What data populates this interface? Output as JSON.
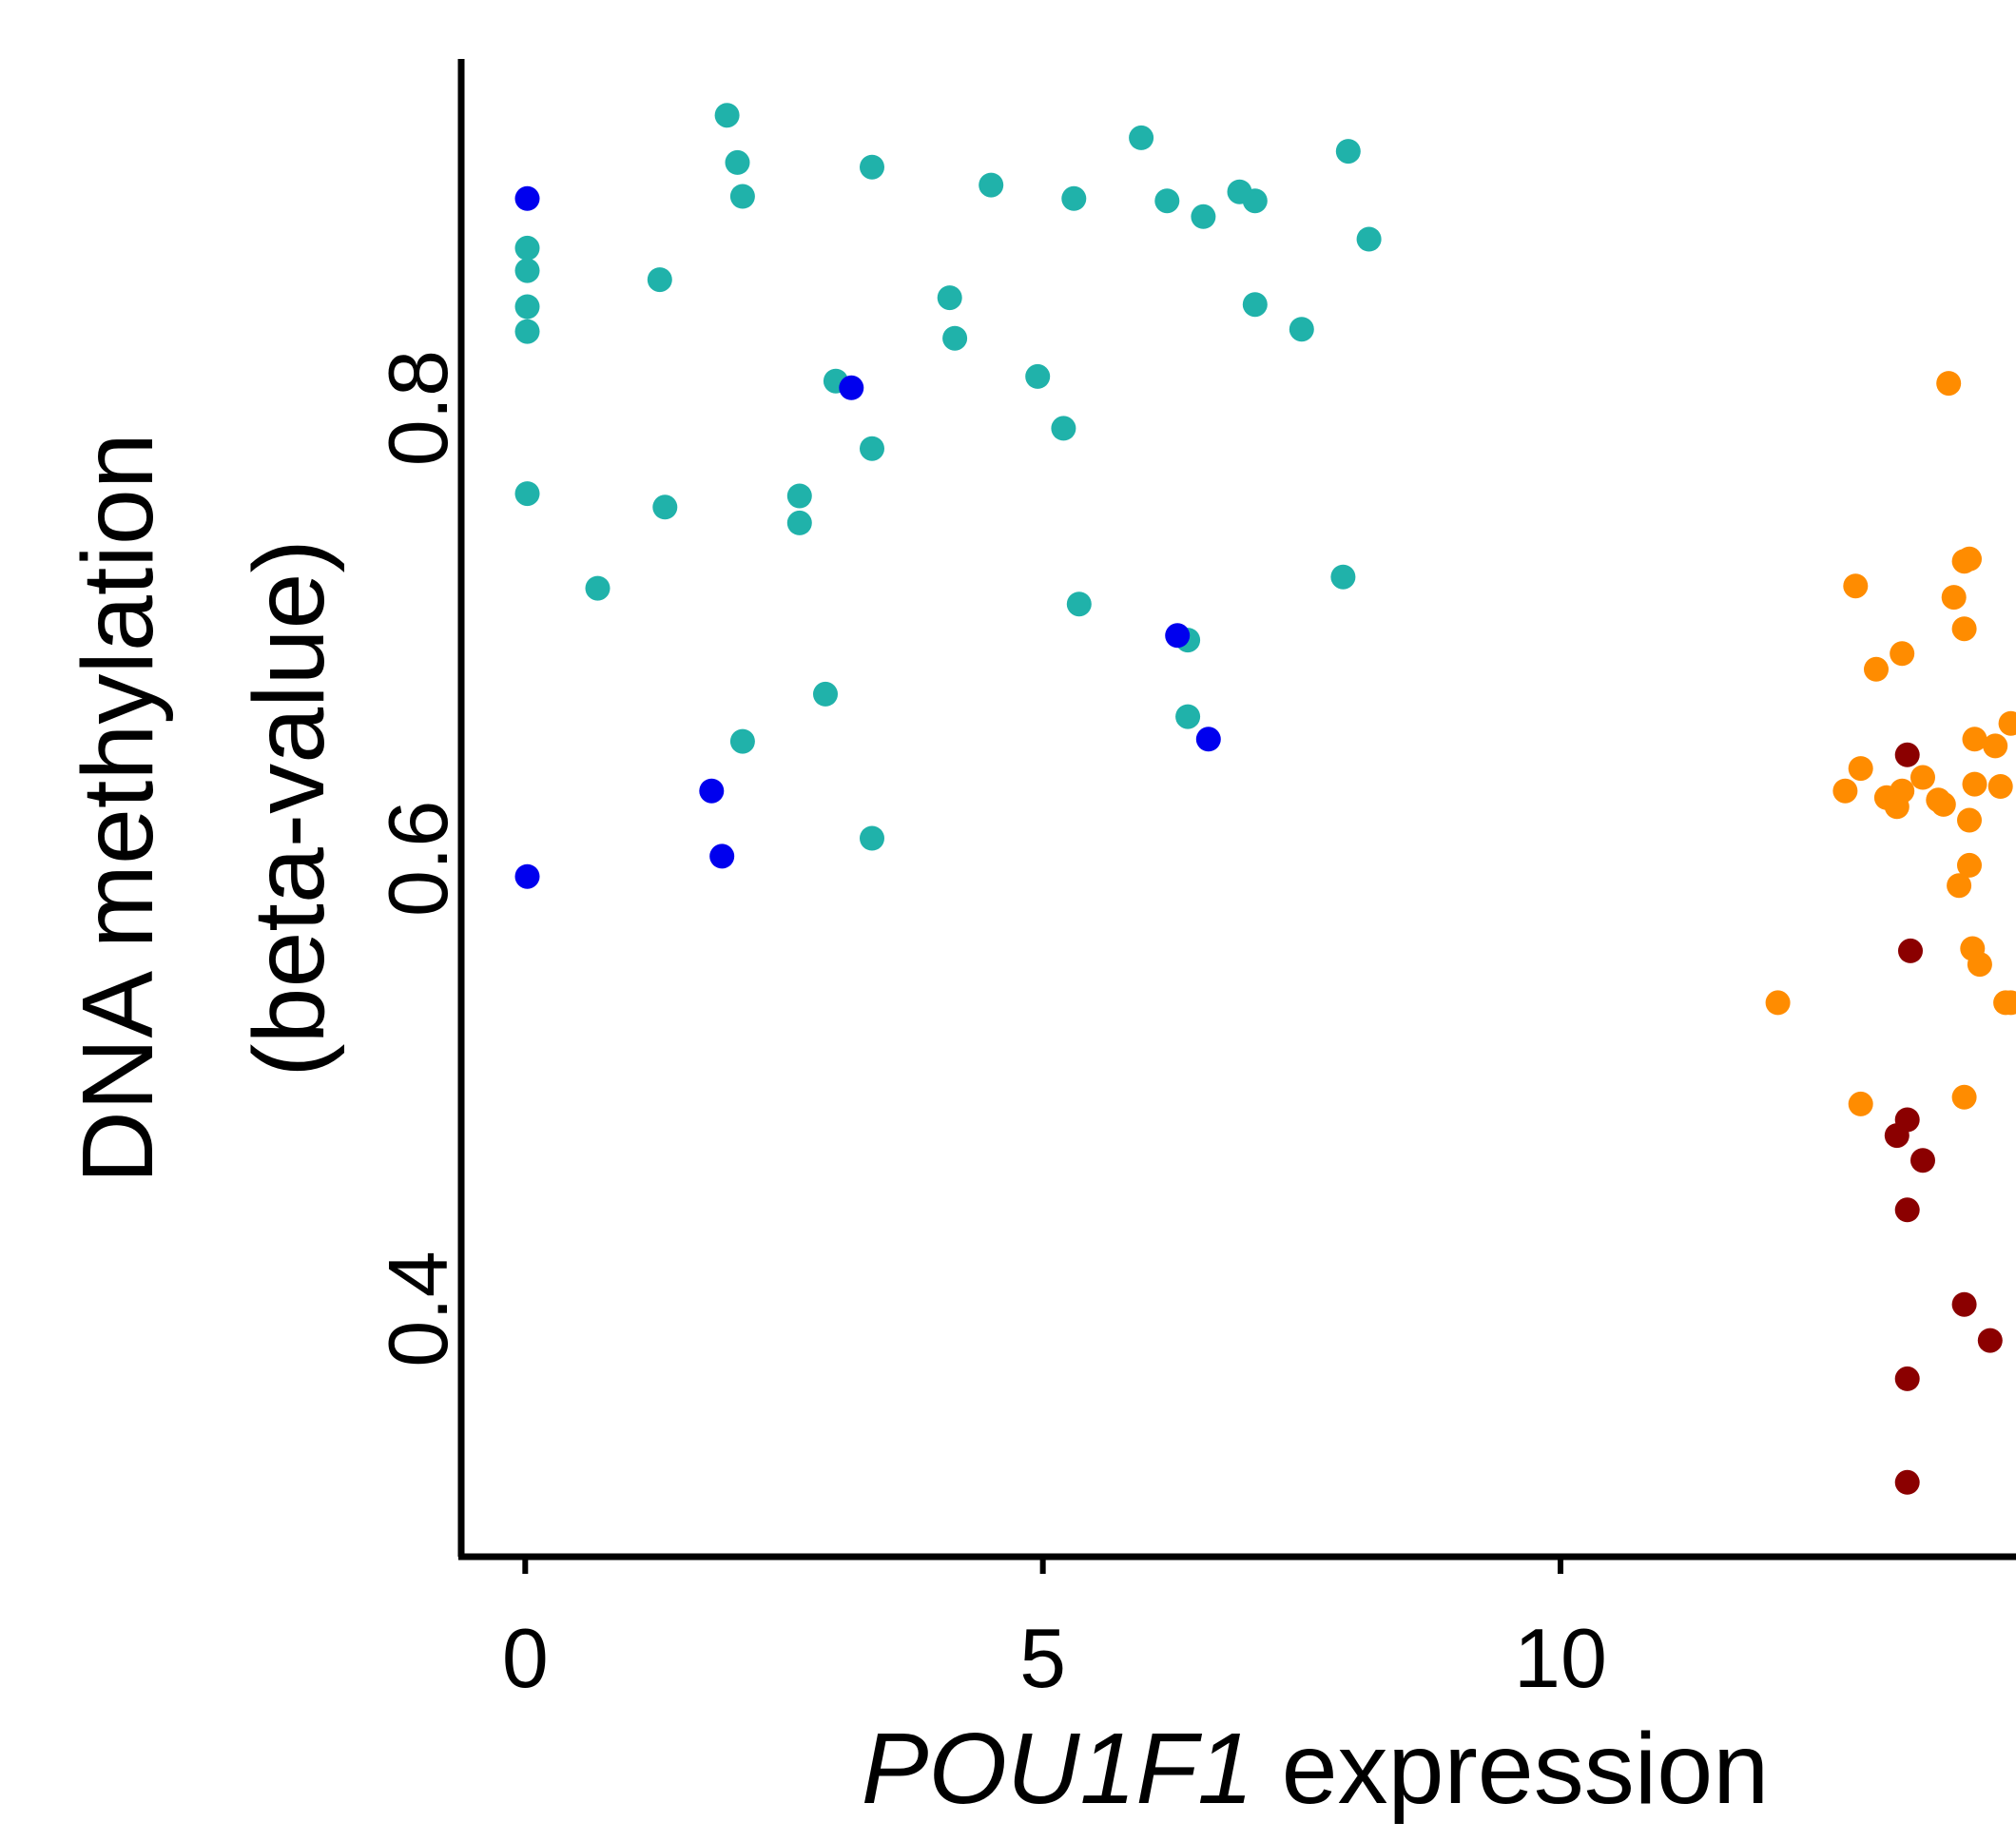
{
  "chart_data": {
    "type": "scatter",
    "xlabel_italic": "POU1F1",
    "xlabel_rest": " expression",
    "ylabel_line1": "DNA methylation",
    "ylabel_line2": "(beta-value)",
    "xlim": [
      -0.6,
      14.4
    ],
    "ylim": [
      0.29,
      0.955
    ],
    "xticks": [
      0,
      5,
      10
    ],
    "xtick_labels": [
      "0",
      "5",
      "10"
    ],
    "yticks": [
      0.4,
      0.6,
      0.8
    ],
    "ytick_labels": [
      "0.4",
      "0.6",
      "0.8"
    ],
    "grid": false,
    "colors": {
      "teal": "#20B2AA",
      "blue": "#0000EE",
      "orange": "#FF8C00",
      "darkred": "#8B0000"
    },
    "series": [
      {
        "color": "teal",
        "points": [
          [
            0.02,
            0.871
          ],
          [
            0.02,
            0.861
          ],
          [
            0.02,
            0.845
          ],
          [
            0.02,
            0.834
          ],
          [
            0.02,
            0.762
          ],
          [
            0.7,
            0.72
          ],
          [
            1.3,
            0.857
          ],
          [
            1.35,
            0.756
          ],
          [
            1.95,
            0.93
          ],
          [
            2.05,
            0.909
          ],
          [
            2.1,
            0.894
          ],
          [
            2.1,
            0.652
          ],
          [
            2.65,
            0.761
          ],
          [
            2.65,
            0.749
          ],
          [
            2.9,
            0.673
          ],
          [
            3.0,
            0.812
          ],
          [
            3.35,
            0.907
          ],
          [
            3.35,
            0.782
          ],
          [
            3.35,
            0.609
          ],
          [
            4.5,
            0.899
          ],
          [
            4.1,
            0.849
          ],
          [
            4.15,
            0.831
          ],
          [
            4.95,
            0.814
          ],
          [
            5.2,
            0.791
          ],
          [
            5.3,
            0.893
          ],
          [
            5.35,
            0.713
          ],
          [
            5.95,
            0.92
          ],
          [
            6.2,
            0.892
          ],
          [
            6.4,
            0.697
          ],
          [
            6.4,
            0.663
          ],
          [
            6.55,
            0.885
          ],
          [
            6.9,
            0.896
          ],
          [
            7.05,
            0.892
          ],
          [
            7.05,
            0.846
          ],
          [
            7.5,
            0.835
          ],
          [
            7.9,
            0.725
          ],
          [
            7.95,
            0.914
          ],
          [
            8.15,
            0.875
          ]
        ]
      },
      {
        "color": "blue",
        "points": [
          [
            0.02,
            0.893
          ],
          [
            0.02,
            0.592
          ],
          [
            1.8,
            0.63
          ],
          [
            1.9,
            0.601
          ],
          [
            3.15,
            0.809
          ],
          [
            6.3,
            0.699
          ],
          [
            6.6,
            0.653
          ]
        ]
      },
      {
        "color": "orange",
        "points": [
          [
            12.1,
            0.536
          ],
          [
            12.75,
            0.63
          ],
          [
            12.85,
            0.721
          ],
          [
            12.9,
            0.64
          ],
          [
            12.9,
            0.491
          ],
          [
            13.05,
            0.684
          ],
          [
            13.15,
            0.627
          ],
          [
            13.25,
            0.623
          ],
          [
            13.3,
            0.63
          ],
          [
            13.3,
            0.691
          ],
          [
            13.5,
            0.636
          ],
          [
            13.65,
            0.626
          ],
          [
            13.7,
            0.624
          ],
          [
            13.75,
            0.811
          ],
          [
            13.8,
            0.716
          ],
          [
            13.85,
            0.588
          ],
          [
            13.9,
            0.732
          ],
          [
            13.9,
            0.702
          ],
          [
            13.9,
            0.494
          ],
          [
            13.95,
            0.617
          ],
          [
            13.95,
            0.597
          ],
          [
            13.95,
            0.733
          ],
          [
            13.98,
            0.56
          ],
          [
            14.0,
            0.653
          ],
          [
            14.0,
            0.633
          ],
          [
            14.05,
            0.553
          ],
          [
            14.2,
            0.65
          ],
          [
            14.25,
            0.632
          ],
          [
            14.3,
            0.536
          ],
          [
            14.35,
            0.536
          ],
          [
            14.35,
            0.66
          ]
        ]
      },
      {
        "color": "darkred",
        "points": [
          [
            13.35,
            0.646
          ],
          [
            13.38,
            0.559
          ],
          [
            13.35,
            0.484
          ],
          [
            13.25,
            0.477
          ],
          [
            13.5,
            0.466
          ],
          [
            13.35,
            0.444
          ],
          [
            13.9,
            0.402
          ],
          [
            14.15,
            0.386
          ],
          [
            13.35,
            0.369
          ],
          [
            13.35,
            0.323
          ]
        ]
      }
    ]
  }
}
